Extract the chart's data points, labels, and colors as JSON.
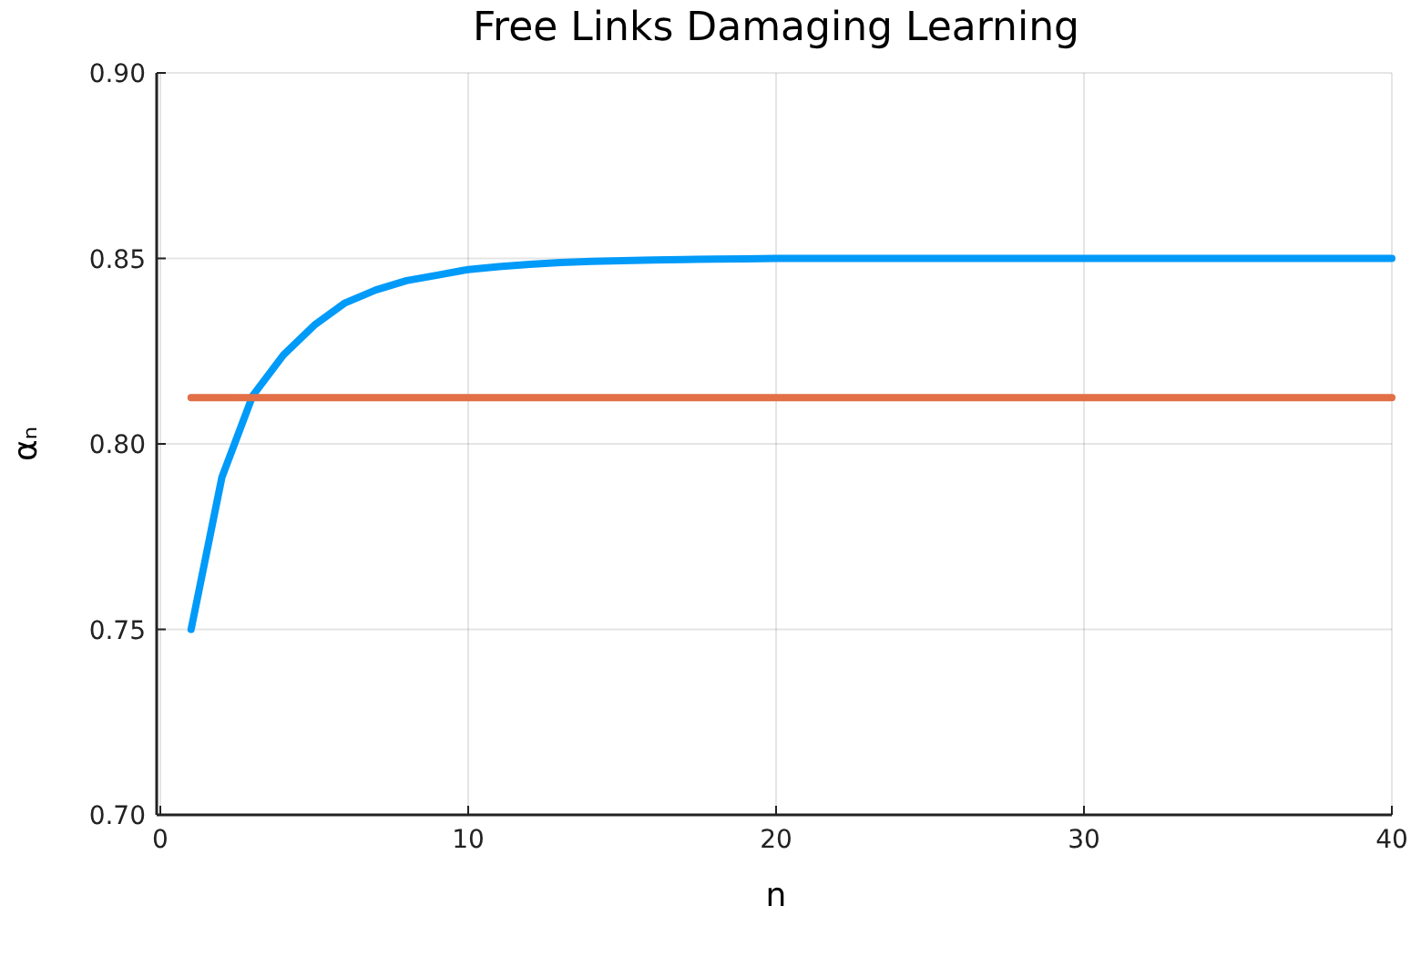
{
  "chart_data": {
    "type": "line",
    "title": "Free Links Damaging Learning",
    "xlabel": "n",
    "ylabel": "αₙ",
    "xlim": [
      0,
      40
    ],
    "xticks": [
      0,
      10,
      20,
      30,
      40
    ],
    "ylim": [
      0.7,
      0.9
    ],
    "yticks": [
      {
        "value": 0.7,
        "label": "0.70"
      },
      0.75,
      {
        "value": 0.8,
        "label": "0.80"
      },
      0.85,
      {
        "value": 0.9,
        "label": "0.90"
      }
    ],
    "grid": true,
    "line_style": "solid",
    "marker": "none",
    "x": [
      1,
      2,
      3,
      4,
      5,
      6,
      7,
      8,
      9,
      10,
      11,
      12,
      13,
      14,
      15,
      16,
      17,
      18,
      19,
      20,
      21,
      22,
      23,
      24,
      25,
      26,
      27,
      28,
      29,
      30,
      31,
      32,
      33,
      34,
      35,
      36,
      37,
      38,
      39,
      40
    ],
    "series": [
      {
        "color": "#009af9",
        "values": [
          0.75,
          0.791,
          0.813,
          0.824,
          0.832,
          0.838,
          0.8415,
          0.844,
          0.8455,
          0.847,
          0.8478,
          0.8484,
          0.8489,
          0.8492,
          0.8494,
          0.8496,
          0.8497,
          0.8498,
          0.8499,
          0.85,
          0.85,
          0.85,
          0.85,
          0.85,
          0.85,
          0.85,
          0.85,
          0.85,
          0.85,
          0.85,
          0.85,
          0.85,
          0.85,
          0.85,
          0.85,
          0.85,
          0.85,
          0.85,
          0.85,
          0.85
        ]
      },
      {
        "color": "#e26f46",
        "values": [
          0.8125,
          0.8125,
          0.8125,
          0.8125,
          0.8125,
          0.8125,
          0.8125,
          0.8125,
          0.8125,
          0.8125,
          0.8125,
          0.8125,
          0.8125,
          0.8125,
          0.8125,
          0.8125,
          0.8125,
          0.8125,
          0.8125,
          0.8125,
          0.8125,
          0.8125,
          0.8125,
          0.8125,
          0.8125,
          0.8125,
          0.8125,
          0.8125,
          0.8125,
          0.8125,
          0.8125,
          0.8125,
          0.8125,
          0.8125,
          0.8125,
          0.8125,
          0.8125,
          0.8125,
          0.8125,
          0.8125
        ]
      }
    ]
  }
}
